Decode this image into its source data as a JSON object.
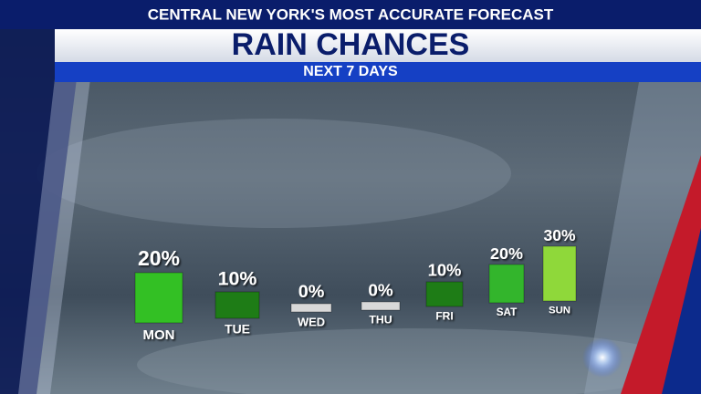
{
  "chart_data": {
    "type": "bar",
    "header": "CENTRAL NEW YORK'S MOST ACCURATE FORECAST",
    "title": "RAIN CHANCES",
    "subtitle": "NEXT 7 DAYS",
    "categories": [
      "MON",
      "TUE",
      "WED",
      "THU",
      "FRI",
      "SAT",
      "SUN"
    ],
    "values": [
      20,
      10,
      0,
      0,
      10,
      20,
      30
    ],
    "value_labels": [
      "20%",
      "10%",
      "0%",
      "0%",
      "10%",
      "20%",
      "30%"
    ],
    "colors": [
      "#33c024",
      "#1e7c16",
      "#d9d9d9",
      "#d9d9d9",
      "#1e7c16",
      "#33b52c",
      "#8fd83a"
    ]
  }
}
